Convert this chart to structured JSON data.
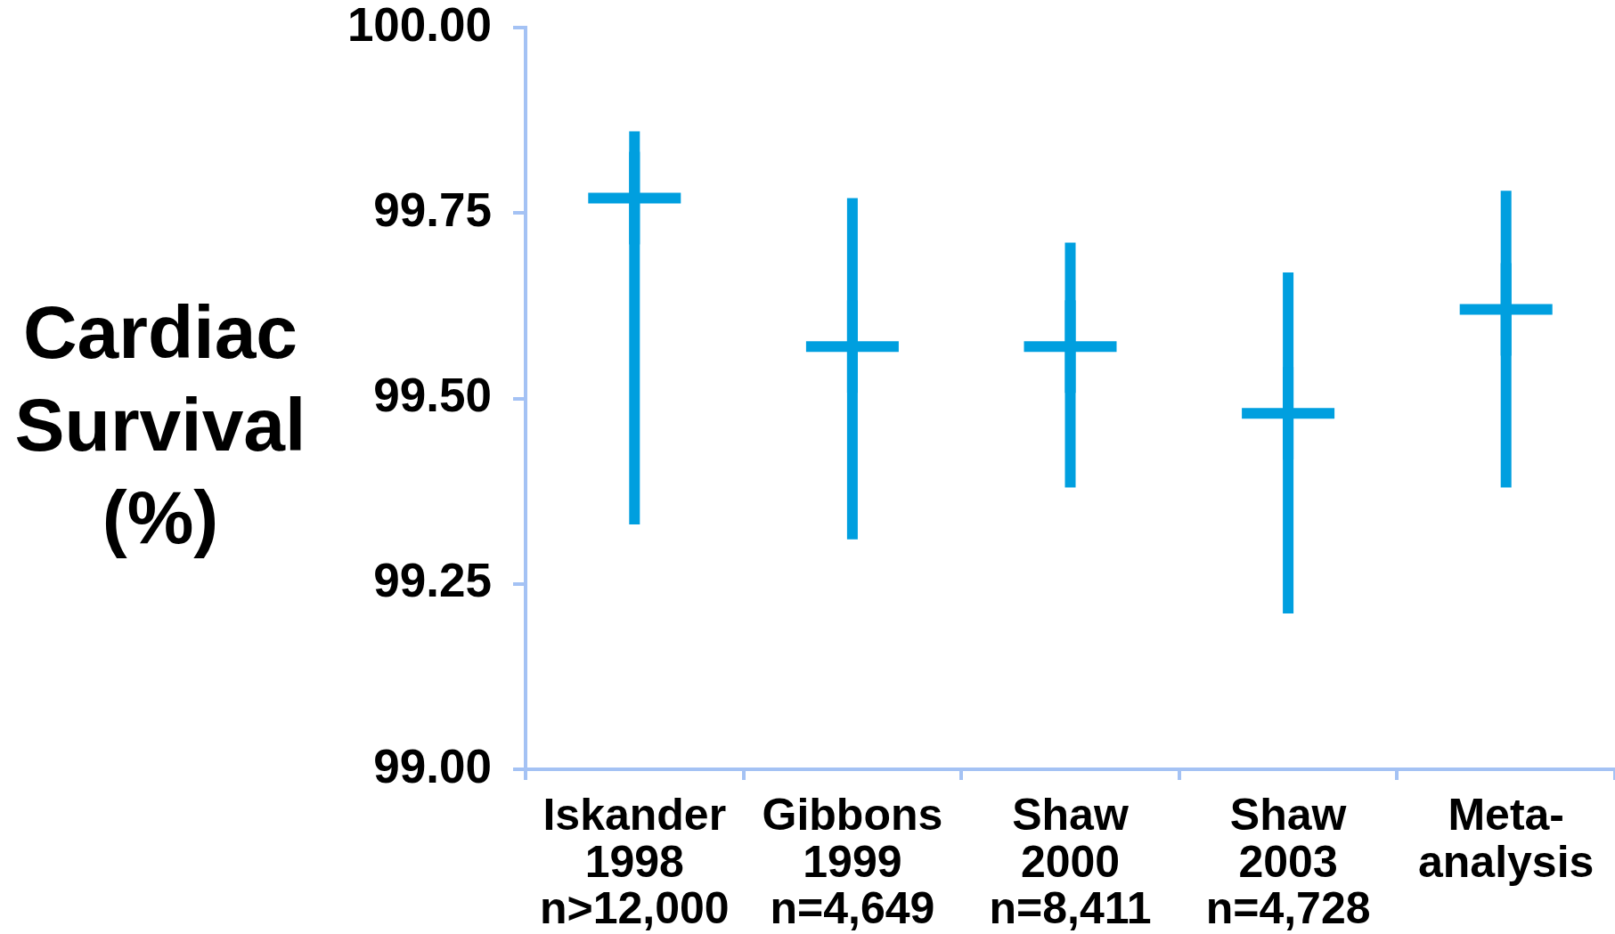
{
  "chart_data": {
    "type": "scatter",
    "ylabel": "Cardiac Survival (%)",
    "categories": [
      "Iskander 1998 n>12,000",
      "Gibbons 1999 n=4,649",
      "Shaw 2000 n=8,411",
      "Shaw 2003 n=4,728",
      "Meta-analysis"
    ],
    "values": [
      99.77,
      99.57,
      99.57,
      99.48,
      99.62
    ],
    "errors": [
      [
        99.33,
        99.86
      ],
      [
        99.31,
        99.77
      ],
      [
        99.38,
        99.71
      ],
      [
        99.21,
        99.67
      ],
      [
        99.38,
        99.78
      ]
    ],
    "color": "#009fdf",
    "marker": "cross",
    "ylim": [
      99,
      100
    ],
    "yticks": [
      {
        "value": 99,
        "label": "99.00"
      },
      99.25,
      {
        "value": 99.5,
        "label": "99.50"
      },
      99.75,
      {
        "value": 100,
        "label": "100.00"
      }
    ]
  }
}
